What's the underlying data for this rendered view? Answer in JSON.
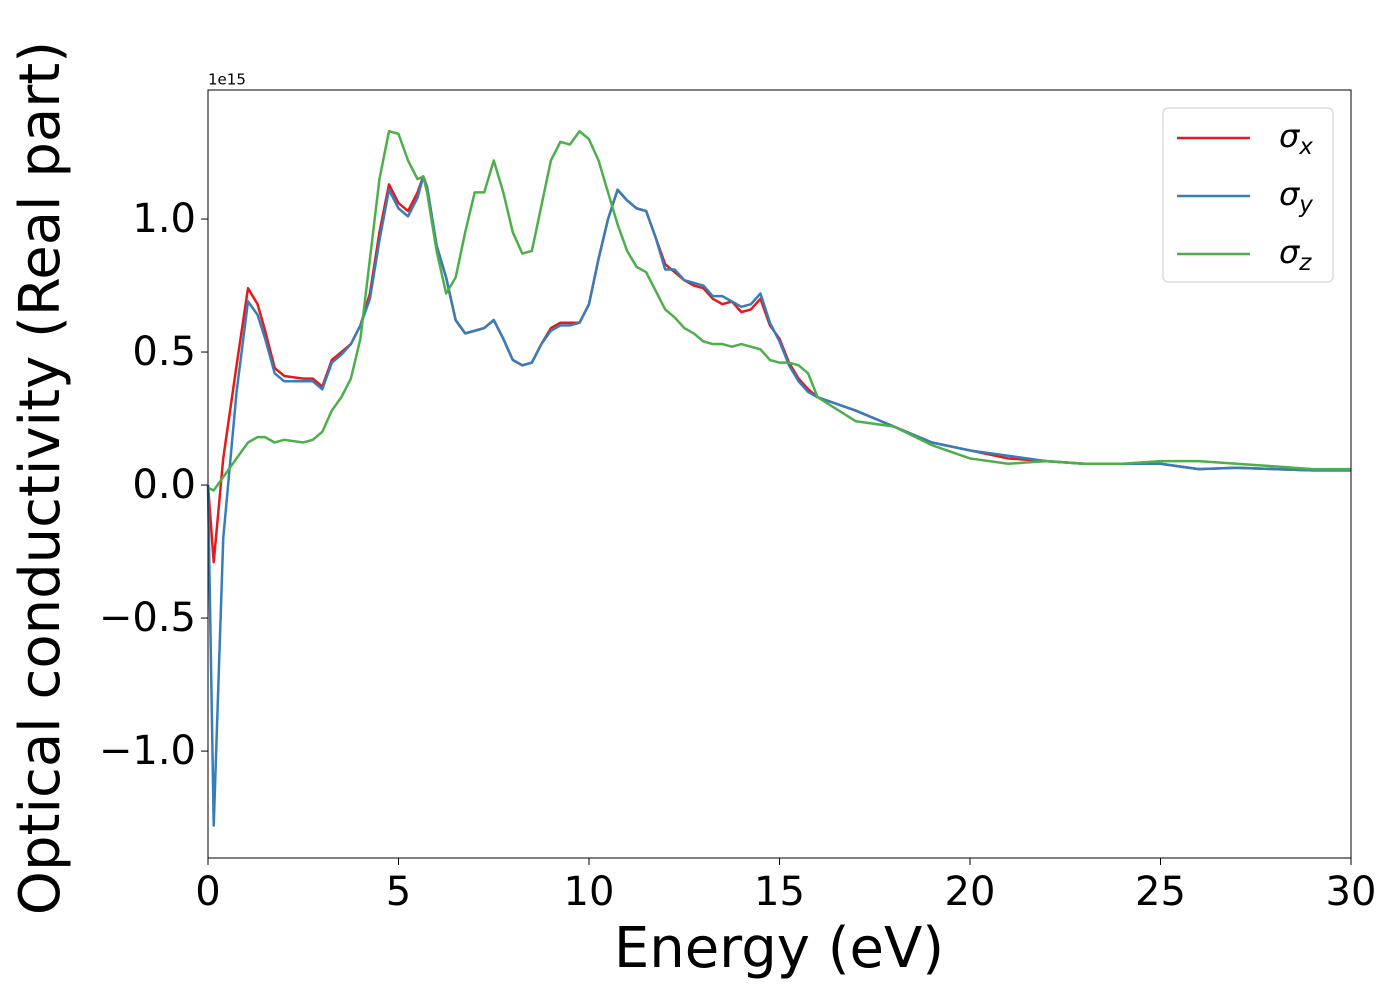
{
  "chart_data": {
    "type": "line",
    "x_label": "Energy (eV)",
    "y_label": "Optical conductivity (Real part)",
    "y_offset": "1e15",
    "x": [
      0,
      0.15,
      0.4,
      0.75,
      1.05,
      1.3,
      1.5,
      1.75,
      2,
      2.5,
      2.75,
      3,
      3.25,
      3.5,
      3.75,
      4,
      4.25,
      4.5,
      4.75,
      5,
      5.25,
      5.5,
      5.65,
      5.75,
      6,
      6.25,
      6.5,
      6.75,
      7,
      7.25,
      7.5,
      7.75,
      8,
      8.25,
      8.5,
      8.75,
      9,
      9.25,
      9.5,
      9.75,
      10,
      10.25,
      10.5,
      10.75,
      11,
      11.25,
      11.5,
      11.75,
      12,
      12.25,
      12.5,
      12.75,
      13,
      13.25,
      13.5,
      13.75,
      14,
      14.25,
      14.5,
      14.75,
      15,
      15.25,
      15.5,
      15.75,
      16,
      17,
      18,
      19,
      20,
      21,
      22,
      23,
      24,
      25,
      26,
      27,
      28,
      29,
      30
    ],
    "series": [
      {
        "name": "σx",
        "color": "#e41a1c",
        "values": [
          0,
          -0.29,
          0.1,
          0.45,
          0.74,
          0.68,
          0.58,
          0.44,
          0.41,
          0.4,
          0.4,
          0.37,
          0.47,
          0.5,
          0.53,
          0.6,
          0.72,
          0.95,
          1.13,
          1.06,
          1.03,
          1.1,
          1.16,
          1.12,
          0.9,
          0.78,
          0.62,
          0.57,
          0.58,
          0.59,
          0.62,
          0.55,
          0.47,
          0.45,
          0.46,
          0.53,
          0.59,
          0.61,
          0.61,
          0.61,
          0.68,
          0.85,
          1.0,
          1.11,
          1.07,
          1.04,
          1.03,
          0.93,
          0.83,
          0.8,
          0.77,
          0.75,
          0.74,
          0.7,
          0.68,
          0.69,
          0.65,
          0.66,
          0.7,
          0.6,
          0.55,
          0.46,
          0.4,
          0.36,
          0.33,
          0.28,
          0.22,
          0.16,
          0.13,
          0.1,
          0.09,
          0.08,
          0.08,
          0.08,
          0.06,
          0.065,
          0.06,
          0.055,
          0.055
        ]
      },
      {
        "name": "σy",
        "color": "#377eb8",
        "values": [
          0,
          -1.28,
          -0.2,
          0.35,
          0.69,
          0.64,
          0.55,
          0.42,
          0.39,
          0.39,
          0.39,
          0.36,
          0.46,
          0.49,
          0.53,
          0.6,
          0.7,
          0.92,
          1.11,
          1.04,
          1.01,
          1.08,
          1.16,
          1.12,
          0.9,
          0.78,
          0.62,
          0.57,
          0.58,
          0.59,
          0.62,
          0.55,
          0.47,
          0.45,
          0.46,
          0.53,
          0.58,
          0.6,
          0.6,
          0.61,
          0.68,
          0.85,
          1.0,
          1.11,
          1.07,
          1.04,
          1.03,
          0.93,
          0.81,
          0.81,
          0.77,
          0.76,
          0.75,
          0.71,
          0.71,
          0.69,
          0.67,
          0.68,
          0.72,
          0.61,
          0.54,
          0.45,
          0.39,
          0.35,
          0.33,
          0.28,
          0.22,
          0.16,
          0.13,
          0.11,
          0.09,
          0.08,
          0.08,
          0.08,
          0.06,
          0.065,
          0.06,
          0.055,
          0.055
        ]
      },
      {
        "name": "σz",
        "color": "#4daf4a",
        "values": [
          -0.01,
          -0.02,
          0.03,
          0.1,
          0.16,
          0.18,
          0.18,
          0.16,
          0.17,
          0.16,
          0.17,
          0.2,
          0.28,
          0.33,
          0.4,
          0.55,
          0.85,
          1.15,
          1.33,
          1.32,
          1.22,
          1.15,
          1.16,
          1.1,
          0.88,
          0.72,
          0.78,
          0.95,
          1.1,
          1.1,
          1.22,
          1.1,
          0.95,
          0.87,
          0.88,
          1.05,
          1.22,
          1.29,
          1.28,
          1.33,
          1.3,
          1.22,
          1.1,
          0.98,
          0.88,
          0.82,
          0.8,
          0.73,
          0.66,
          0.63,
          0.59,
          0.57,
          0.54,
          0.53,
          0.53,
          0.52,
          0.53,
          0.52,
          0.51,
          0.47,
          0.46,
          0.46,
          0.45,
          0.42,
          0.33,
          0.24,
          0.22,
          0.15,
          0.1,
          0.08,
          0.09,
          0.08,
          0.08,
          0.09,
          0.09,
          0.08,
          0.07,
          0.06,
          0.06
        ]
      }
    ],
    "xlim": [
      0,
      30
    ],
    "xticks": [
      0,
      5,
      10,
      15,
      20,
      25,
      30
    ],
    "ylim": [
      -1.402,
      1.485
    ],
    "yticks": [
      {
        "value": -1,
        "label": "−1.0"
      },
      {
        "value": -0.5,
        "label": "−0.5"
      },
      {
        "value": 0,
        "label": "0.0"
      },
      {
        "value": 0.5,
        "label": "0.5"
      },
      {
        "value": 1,
        "label": "1.0"
      }
    ],
    "grid": false,
    "legend": "upper right"
  }
}
